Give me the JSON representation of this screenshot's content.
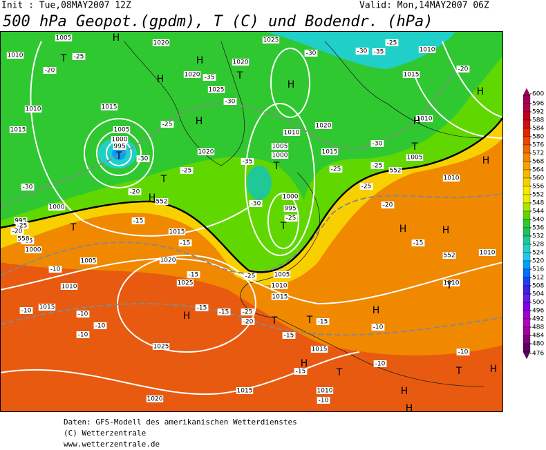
{
  "header": {
    "init": "Init : Tue,08MAY2007 12Z",
    "valid": "Valid: Mon,14MAY2007 06Z",
    "title": "500 hPa Geopot.(gpdm), T (C) und Bodendr. (hPa)"
  },
  "colorbar": {
    "ticks": [
      600,
      596,
      592,
      588,
      584,
      580,
      576,
      572,
      568,
      564,
      560,
      556,
      552,
      548,
      544,
      540,
      536,
      532,
      528,
      524,
      520,
      516,
      512,
      508,
      504,
      500,
      496,
      492,
      488,
      484,
      480,
      476
    ],
    "colors": [
      "#a0005a",
      "#b00040",
      "#c00020",
      "#d01010",
      "#e02800",
      "#e84800",
      "#f06800",
      "#f08800",
      "#f8a000",
      "#f8b800",
      "#f8d000",
      "#f8e800",
      "#e8f000",
      "#a8e800",
      "#60d800",
      "#30c830",
      "#20c060",
      "#20c898",
      "#20d0c8",
      "#20c8f0",
      "#00a0ff",
      "#0070ff",
      "#2040f0",
      "#4020e0",
      "#6020e0",
      "#8000e0",
      "#a000d0",
      "#b000c0",
      "#a000a0",
      "#800080",
      "#600060"
    ]
  },
  "map_labels": [
    "1005",
    "1010",
    "1020",
    "1025",
    "1010",
    "1020",
    "1025",
    "1020",
    "1015",
    "1015",
    "1010",
    "1015",
    "1005",
    "1000",
    "995",
    "1010",
    "1020",
    "1005",
    "1000",
    "1020",
    "1015",
    "1010",
    "1005",
    "1010",
    "1000",
    "995",
    "1000",
    "995",
    "1000",
    "1005",
    "1015",
    "1020",
    "1025",
    "1010",
    "1015",
    "1005",
    "1010",
    "1015",
    "1010",
    "1010",
    "1015",
    "1025",
    "1020",
    "1015",
    "1010",
    "-20",
    "-25",
    "-30",
    "-35",
    "-30",
    "-25",
    "-20",
    "-35",
    "-30",
    "-25",
    "-30",
    "-25",
    "-35",
    "-25",
    "-25",
    "-30",
    "-25",
    "-20",
    "-30",
    "-25",
    "-15",
    "-20",
    "-30",
    "-25",
    "-20",
    "-15",
    "-15",
    "-10",
    "-15",
    "-15",
    "-15",
    "-20",
    "-25",
    "-25",
    "-10",
    "-10",
    "-10",
    "-10",
    "-15",
    "-15",
    "-15",
    "-10",
    "-15",
    "-10",
    "-10",
    "-10",
    "T",
    "H",
    "H",
    "H",
    "T",
    "H",
    "H",
    "T",
    "T",
    "H",
    "T",
    "T",
    "T",
    "H",
    "H",
    "T",
    "H",
    "H",
    "H",
    "T",
    "H",
    "H",
    "T",
    "T",
    "H",
    "T",
    "H",
    "T",
    "H",
    "H",
    "552",
    "558",
    "552",
    "552"
  ],
  "footer": [
    "Daten: GFS-Modell des amerikanischen Wetterdienstes",
    "(C) Wetterzentrale",
    "www.wetterzentrale.de"
  ]
}
